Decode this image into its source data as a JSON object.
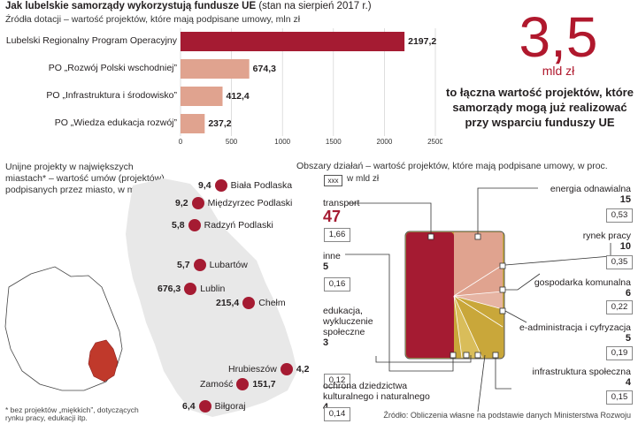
{
  "header": {
    "title": "Jak lubelskie samorządy wykorzystują fundusze UE",
    "title_note": "(stan na sierpień 2017 r.)",
    "subtitle": "Źródła dotacji – wartość projektów, które mają podpisane umowy, mln zł"
  },
  "colors": {
    "accent": "#a51b32",
    "light": "#e0a38f",
    "mid": "#c9a73a"
  },
  "chart_data": [
    {
      "type": "bar",
      "orientation": "horizontal",
      "title": "Źródła dotacji – wartość projektów, które mają podpisane umowy, mln zł",
      "categories": [
        "Lubelski Regionalny Program Operacyjny",
        "PO „Rozwój Polski wschodniej”",
        "PO „Infrastruktura i środowisko”",
        "PO „Wiedza edukacja rozwój”"
      ],
      "values": [
        2197.2,
        674.3,
        412.4,
        237.2
      ],
      "value_labels": [
        "2197,2",
        "674,3",
        "412,4",
        "237,2"
      ],
      "xlim": [
        0,
        2500
      ],
      "ticks": [
        "0",
        "500",
        "1000",
        "1500",
        "2000",
        "2500"
      ]
    },
    {
      "type": "treemap",
      "title": "Obszary działań – wartość projektów, które mają podpisane umowy, w proc.",
      "legend_box": "xxx",
      "legend_text": "w mld zł",
      "categories": [
        "transport",
        "energia odnawialna",
        "rynek pracy",
        "gospodarka komunalna",
        "e-administracja i cyfryzacja",
        "infrastruktura społeczna",
        "ochrona dziedzictwa kulturalnego i naturalnego",
        "edukacja, wykluczenie społeczne",
        "inne"
      ],
      "values": [
        47,
        15,
        10,
        6,
        5,
        4,
        4,
        3,
        5
      ],
      "amounts": [
        "1,66",
        "0,53",
        "0,35",
        "0,22",
        "0,19",
        "0,15",
        "0,14",
        "0,12",
        "0,16"
      ]
    }
  ],
  "big": {
    "number": "3,5",
    "unit": "mld zł",
    "text": "to łączna wartość projektów, które samorządy mogą już realizować przy wsparciu funduszy UE"
  },
  "map": {
    "caption": "Unijne projekty w największych miastach* – wartość umów (projektów) podpisanych przez miasto, w mln zł",
    "footnote": "* bez projektów „miękkich”, dotyczących rynku pracy, edukacji itp.",
    "cities": [
      {
        "name": "Biała Podlaska",
        "value": "9,4"
      },
      {
        "name": "Międzyrzec Podlaski",
        "value": "9,2"
      },
      {
        "name": "Radzyń Podlaski",
        "value": "5,8"
      },
      {
        "name": "Lubartów",
        "value": "5,7"
      },
      {
        "name": "Lublin",
        "value": "676,3"
      },
      {
        "name": "Chełm",
        "value": "215,4"
      },
      {
        "name": "Hrubieszów",
        "value": "4,2"
      },
      {
        "name": "Zamość",
        "value": "151,7"
      },
      {
        "name": "Biłgoraj",
        "value": "6,4"
      }
    ]
  },
  "source": "Źródło: Obliczenia własne na podstawie danych Ministerstwa Rozwoju"
}
